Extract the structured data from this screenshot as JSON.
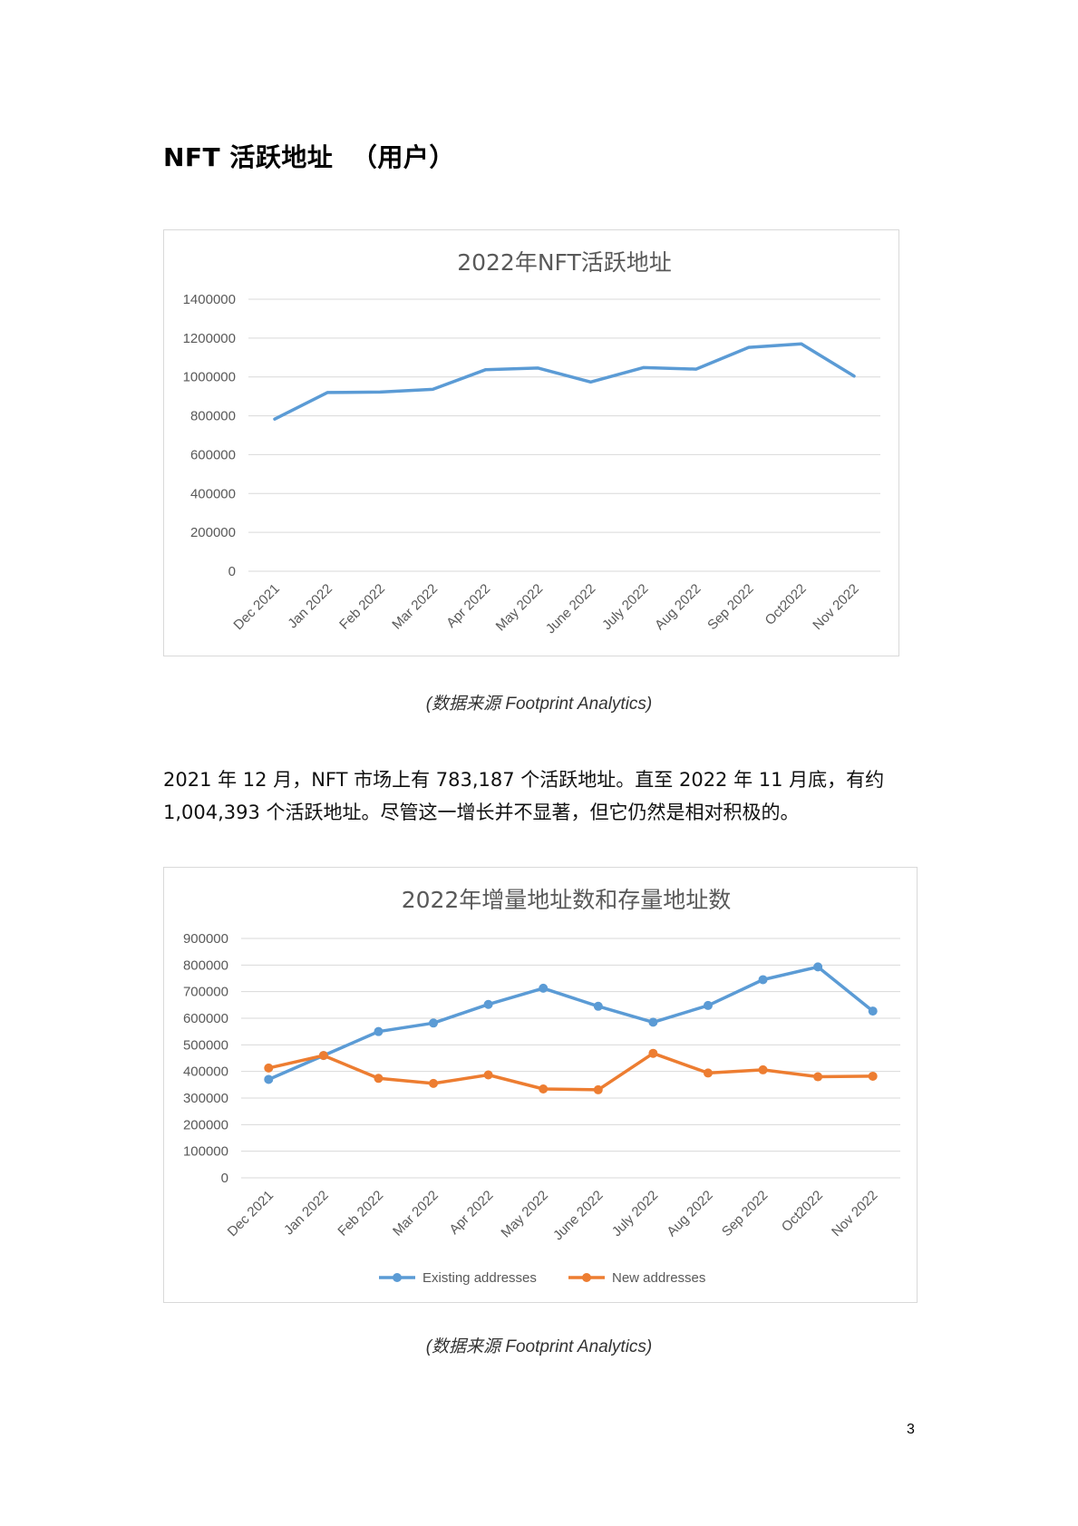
{
  "heading": "NFT 活跃地址  （用户）",
  "paragraph": "2021 年 12 月，NFT 市场上有 783,187 个活跃地址。直至 2022 年 11 月底，有约 1,004,393 个活跃地址。尽管这一增长并不显著，但它仍然是相对积极的。",
  "caption1": "(数据来源 Footprint Analytics)",
  "caption2": "(数据来源 Footprint Analytics)",
  "page_number": "3",
  "chart_data": [
    {
      "type": "line",
      "title": "2022年NFT活跃地址",
      "categories": [
        "Dec 2021",
        "Jan 2022",
        "Feb 2022",
        "Mar 2022",
        "Apr 2022",
        "May 2022",
        "June 2022",
        "July 2022",
        "Aug 2022",
        "Sep 2022",
        "Oct2022",
        "Nov 2022"
      ],
      "series": [
        {
          "values": [
            783187,
            920000,
            922000,
            936000,
            1037000,
            1046000,
            974000,
            1048000,
            1040000,
            1152000,
            1170000,
            1004393
          ],
          "color": "#5b9bd5"
        }
      ],
      "ylim": [
        0,
        1400000
      ],
      "yticks": [
        "0",
        "200000",
        "400000",
        "600000",
        "800000",
        "1000000",
        "1200000",
        "1400000"
      ],
      "grid": true,
      "markers": false,
      "legend": "none"
    },
    {
      "type": "line",
      "title": "2022年增量地址数和存量地址数",
      "categories": [
        "Dec 2021",
        "Jan 2022",
        "Feb 2022",
        "Mar 2022",
        "Apr 2022",
        "May 2022",
        "June 2022",
        "July 2022",
        "Aug 2022",
        "Sep 2022",
        "Oct2022",
        "Nov 2022"
      ],
      "series": [
        {
          "name": "Existing addresses",
          "values": [
            370000,
            460000,
            550000,
            582000,
            652000,
            713000,
            645000,
            585000,
            648000,
            745000,
            793000,
            627000
          ],
          "color": "#5b9bd5"
        },
        {
          "name": "New addresses",
          "values": [
            413000,
            460000,
            374000,
            355000,
            387000,
            334000,
            331000,
            468000,
            394000,
            406000,
            380000,
            382000
          ],
          "color": "#ed7d31"
        }
      ],
      "ylim": [
        0,
        900000
      ],
      "yticks": [
        "0",
        "100000",
        "200000",
        "300000",
        "400000",
        "500000",
        "600000",
        "700000",
        "800000",
        "900000"
      ],
      "grid": true,
      "markers": true,
      "legend": "bottom"
    }
  ]
}
